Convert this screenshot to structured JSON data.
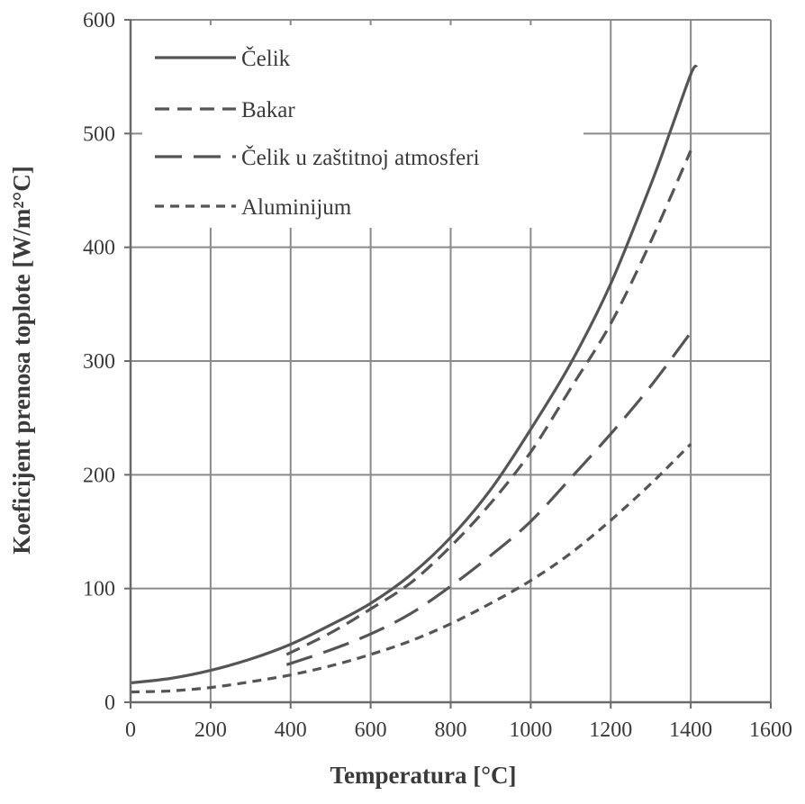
{
  "chart_data": {
    "type": "line",
    "title": "",
    "xlabel": "Temperatura [°C]",
    "ylabel": "Koeficijent prenosa toplote [W/m²°C]",
    "xlim": [
      0,
      1600
    ],
    "ylim": [
      0,
      600
    ],
    "x_ticks": [
      0,
      200,
      400,
      600,
      800,
      1000,
      1200,
      1400,
      1600
    ],
    "y_ticks": [
      0,
      100,
      200,
      300,
      400,
      500,
      600
    ],
    "grid": true,
    "legend_position": "top-left",
    "series": [
      {
        "name": "Čelik",
        "style": "solid",
        "color": "#555555",
        "points": [
          [
            0,
            17
          ],
          [
            100,
            21
          ],
          [
            200,
            28
          ],
          [
            300,
            38
          ],
          [
            400,
            51
          ],
          [
            500,
            68
          ],
          [
            600,
            87
          ],
          [
            700,
            112
          ],
          [
            800,
            145
          ],
          [
            900,
            187
          ],
          [
            1000,
            240
          ],
          [
            1100,
            298
          ],
          [
            1200,
            368
          ],
          [
            1300,
            455
          ],
          [
            1350,
            503
          ],
          [
            1400,
            552
          ],
          [
            1415,
            560
          ]
        ]
      },
      {
        "name": "Bakar",
        "style": "dash",
        "color": "#555555",
        "points": [
          [
            390,
            42
          ],
          [
            500,
            61
          ],
          [
            600,
            82
          ],
          [
            700,
            105
          ],
          [
            800,
            137
          ],
          [
            900,
            175
          ],
          [
            1000,
            220
          ],
          [
            1100,
            276
          ],
          [
            1200,
            333
          ],
          [
            1300,
            405
          ],
          [
            1400,
            485
          ]
        ]
      },
      {
        "name": "Čelik u zaštitnoj atmosferi",
        "style": "long-dash",
        "color": "#555555",
        "points": [
          [
            390,
            33
          ],
          [
            500,
            46
          ],
          [
            600,
            60
          ],
          [
            700,
            78
          ],
          [
            800,
            102
          ],
          [
            900,
            129
          ],
          [
            1000,
            159
          ],
          [
            1100,
            197
          ],
          [
            1200,
            236
          ],
          [
            1300,
            278
          ],
          [
            1400,
            325
          ]
        ]
      },
      {
        "name": "Aluminijum",
        "style": "short-dash",
        "color": "#555555",
        "points": [
          [
            0,
            9
          ],
          [
            100,
            10
          ],
          [
            200,
            13
          ],
          [
            300,
            18
          ],
          [
            400,
            24
          ],
          [
            500,
            32
          ],
          [
            600,
            42
          ],
          [
            700,
            54
          ],
          [
            800,
            69
          ],
          [
            900,
            87
          ],
          [
            1000,
            107
          ],
          [
            1100,
            131
          ],
          [
            1200,
            160
          ],
          [
            1300,
            192
          ],
          [
            1400,
            227
          ]
        ]
      }
    ]
  }
}
